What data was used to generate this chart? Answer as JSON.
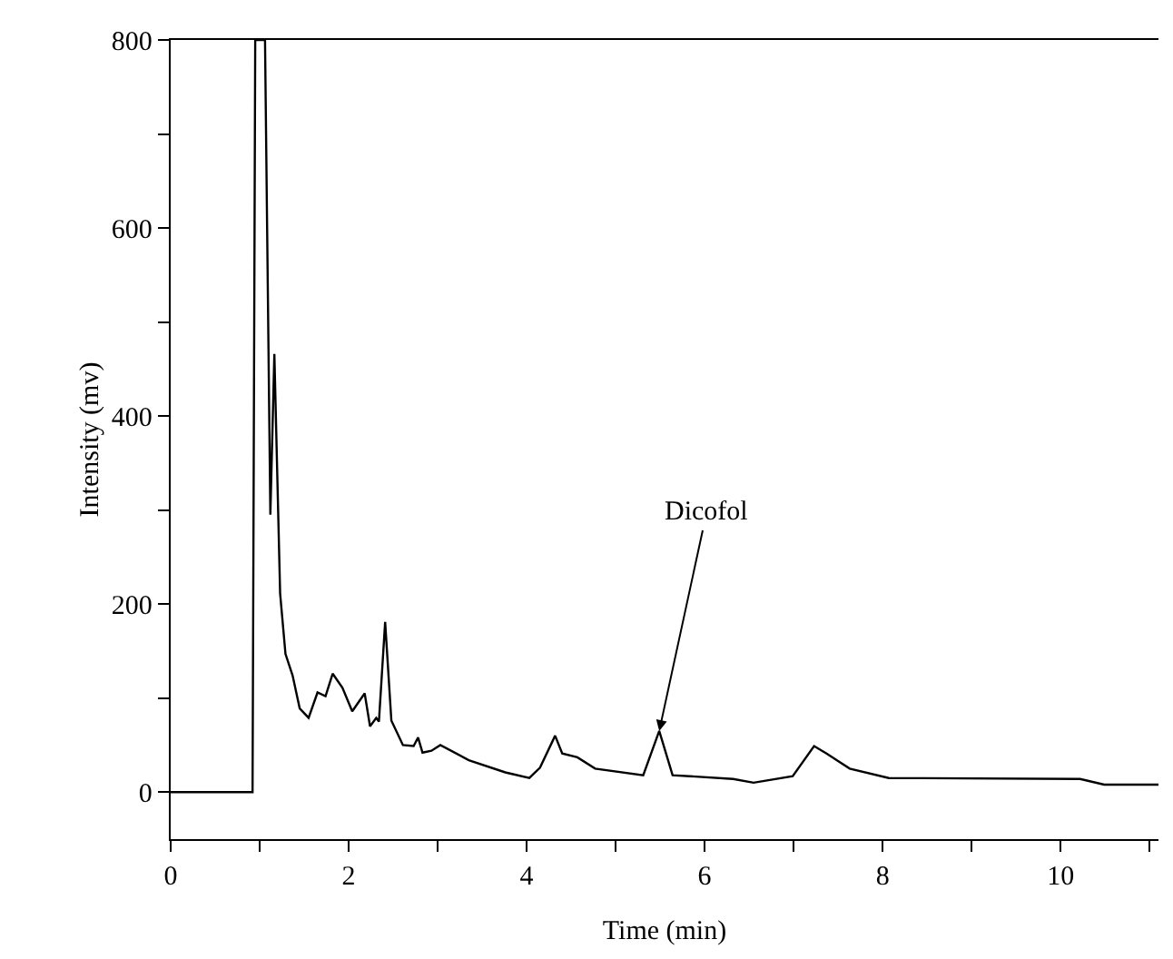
{
  "chart_data": {
    "type": "line",
    "xlabel": "Time (min)",
    "ylabel": "Intensity (mv)",
    "x": [
      0,
      0.92,
      0.95,
      1.06,
      1.12,
      1.165,
      1.23,
      1.29,
      1.37,
      1.45,
      1.55,
      1.65,
      1.74,
      1.82,
      1.93,
      2.04,
      2.18,
      2.24,
      2.31,
      2.34,
      2.41,
      2.48,
      2.61,
      2.73,
      2.78,
      2.83,
      2.93,
      3.03,
      3.35,
      3.76,
      4.03,
      4.15,
      4.32,
      4.4,
      4.57,
      4.77,
      5.31,
      5.49,
      5.64,
      6.32,
      6.55,
      6.99,
      7.23,
      7.37,
      7.63,
      8.07,
      10.22,
      10.49,
      11.1
    ],
    "series": [
      {
        "color": "#000000",
        "values": [
          0,
          0,
          800,
          800,
          295,
          466,
          211,
          147,
          124,
          89,
          79,
          106,
          102,
          126,
          111,
          86,
          105,
          70,
          79,
          75,
          181,
          76,
          50,
          49,
          58,
          42,
          44,
          50,
          34,
          21,
          15,
          26,
          60,
          41,
          37,
          25,
          18,
          65,
          18,
          14,
          10,
          17,
          49,
          41,
          25,
          15,
          14,
          8,
          8
        ]
      }
    ],
    "xlim": [
      0,
      11.1
    ],
    "ylim": [
      -50,
      800
    ],
    "xticks": [
      0,
      {
        "value": 1,
        "label": null
      },
      2,
      {
        "value": 3,
        "label": null
      },
      4,
      {
        "value": 5,
        "label": null
      },
      6,
      {
        "value": 7,
        "label": null
      },
      8,
      {
        "value": 9,
        "label": null
      },
      10,
      {
        "value": 11,
        "label": null
      }
    ],
    "yticks": [
      0,
      {
        "value": 100,
        "label": null
      },
      200,
      {
        "value": 300,
        "label": null
      },
      400,
      {
        "value": 500,
        "label": null
      },
      600,
      {
        "value": 700,
        "label": null
      },
      800
    ],
    "annotations": [
      {
        "text": "Dicofol",
        "x": 5.49,
        "y": 65
      }
    ],
    "grid": false,
    "marker": "none",
    "line_style": "solid"
  }
}
